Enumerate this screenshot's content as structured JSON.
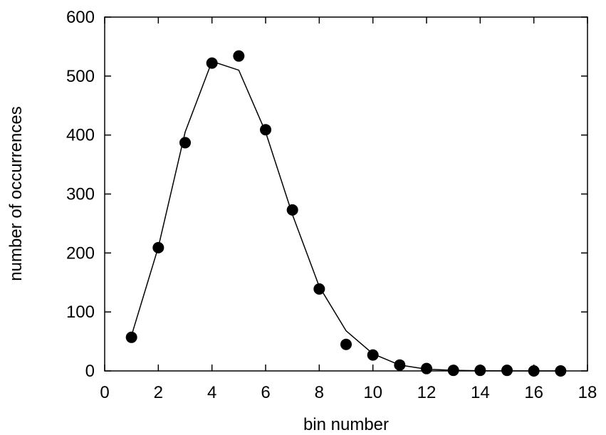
{
  "chart_data": {
    "type": "scatter",
    "title": "",
    "xlabel": "bin number",
    "ylabel": "number of occurrences",
    "xlim": [
      0,
      18
    ],
    "ylim": [
      0,
      600
    ],
    "xticks": [
      0,
      2,
      4,
      6,
      8,
      10,
      12,
      14,
      16,
      18
    ],
    "yticks": [
      0,
      100,
      200,
      300,
      400,
      500,
      600
    ],
    "grid": false,
    "legend": "none",
    "series": [
      {
        "style": "points",
        "marker": "filled-circle",
        "color": "#000000",
        "x": [
          1,
          2,
          3,
          4,
          5,
          6,
          7,
          8,
          9,
          10,
          11,
          12,
          13,
          14,
          15,
          16,
          17
        ],
        "y": [
          57,
          209,
          387,
          522,
          534,
          409,
          273,
          139,
          45,
          27,
          10,
          4,
          1,
          1,
          1,
          0,
          0
        ]
      },
      {
        "style": "line",
        "color": "#000000",
        "x": [
          1,
          2,
          3,
          4,
          5,
          6,
          7,
          8,
          9,
          10,
          11,
          12,
          13,
          14,
          15,
          16,
          17
        ],
        "y": [
          60,
          210,
          405,
          525,
          510,
          405,
          265,
          143,
          68,
          29,
          10,
          3,
          1,
          0.3,
          0.1,
          0,
          0
        ]
      }
    ]
  }
}
